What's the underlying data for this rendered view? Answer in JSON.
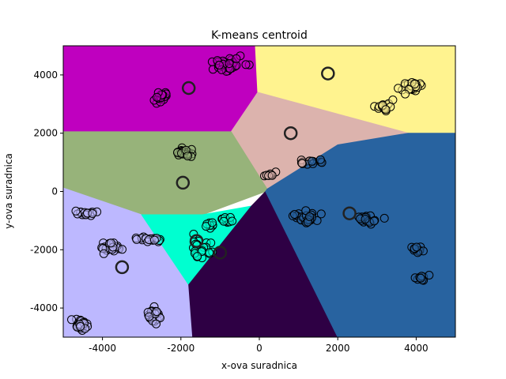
{
  "chart_data": {
    "type": "scatter",
    "title": "K-means centroid",
    "xlabel": "x-ova suradnica",
    "ylabel": "y-ova suradnica",
    "xlim": [
      -5000,
      5000
    ],
    "ylim": [
      -5000,
      5000
    ],
    "xticks": [
      -4000,
      -2000,
      0,
      2000,
      4000
    ],
    "yticks": [
      -4000,
      -2000,
      0,
      2000,
      4000
    ],
    "grid": false,
    "regions": [
      {
        "color": "#bf00bf",
        "polygon": [
          [
            -5000,
            5000
          ],
          [
            -100,
            5000
          ],
          [
            -40,
            3400
          ],
          [
            -720,
            2050
          ],
          [
            -5000,
            2050
          ]
        ]
      },
      {
        "color": "#fff38f",
        "polygon": [
          [
            -100,
            5000
          ],
          [
            5000,
            5000
          ],
          [
            5000,
            2000
          ],
          [
            3800,
            2000
          ],
          [
            -40,
            3400
          ]
        ]
      },
      {
        "color": "#dcb3ad",
        "polygon": [
          [
            -40,
            3400
          ],
          [
            3800,
            2000
          ],
          [
            2000,
            1600
          ],
          [
            200,
            80
          ],
          [
            -720,
            2050
          ]
        ]
      },
      {
        "color": "#97b37a",
        "polygon": [
          [
            -5000,
            2050
          ],
          [
            -720,
            2050
          ],
          [
            200,
            80
          ],
          [
            160,
            0
          ],
          [
            -1450,
            -800
          ],
          [
            -3000,
            -800
          ],
          [
            -5000,
            120
          ]
        ]
      },
      {
        "color": "#bdb8ff",
        "polygon": [
          [
            -5000,
            120
          ],
          [
            -3000,
            -800
          ],
          [
            -1750,
            -3200
          ],
          [
            -1700,
            -5000
          ],
          [
            -5000,
            -5000
          ]
        ]
      },
      {
        "color": "#00ffd0",
        "polygon": [
          [
            -3000,
            -800
          ],
          [
            -1450,
            -800
          ],
          [
            -200,
            -500
          ],
          [
            -1800,
            -3200
          ]
        ]
      },
      {
        "color": "#2e0044",
        "polygon": [
          [
            -1800,
            -3200
          ],
          [
            -200,
            -500
          ],
          [
            160,
            0
          ],
          [
            2000,
            -5000
          ],
          [
            -1700,
            -5000
          ]
        ]
      },
      {
        "color": "#2863a0",
        "polygon": [
          [
            160,
            0
          ],
          [
            200,
            80
          ],
          [
            2000,
            1600
          ],
          [
            3800,
            2000
          ],
          [
            5000,
            2000
          ],
          [
            5000,
            -5000
          ],
          [
            2000,
            -5000
          ]
        ]
      }
    ],
    "clusters": [
      {
        "cx": -780,
        "cy": 4400,
        "sx": 380,
        "sy": 180,
        "n": 40
      },
      {
        "cx": -2500,
        "cy": 3250,
        "sx": 150,
        "sy": 180,
        "n": 20
      },
      {
        "cx": 3850,
        "cy": 3600,
        "sx": 220,
        "sy": 150,
        "n": 24
      },
      {
        "cx": 3200,
        "cy": 2950,
        "sx": 200,
        "sy": 140,
        "n": 16
      },
      {
        "cx": -1900,
        "cy": 1350,
        "sx": 200,
        "sy": 160,
        "n": 22
      },
      {
        "cx": 1300,
        "cy": 1000,
        "sx": 220,
        "sy": 130,
        "n": 16
      },
      {
        "cx": 300,
        "cy": 600,
        "sx": 120,
        "sy": 70,
        "n": 8
      },
      {
        "cx": -4400,
        "cy": -750,
        "sx": 260,
        "sy": 80,
        "n": 16
      },
      {
        "cx": -2800,
        "cy": -1650,
        "sx": 280,
        "sy": 100,
        "n": 18
      },
      {
        "cx": -3800,
        "cy": -1900,
        "sx": 220,
        "sy": 180,
        "n": 24
      },
      {
        "cx": -1300,
        "cy": -1100,
        "sx": 150,
        "sy": 100,
        "n": 8
      },
      {
        "cx": -900,
        "cy": -1000,
        "sx": 200,
        "sy": 100,
        "n": 10
      },
      {
        "cx": -1500,
        "cy": -1750,
        "sx": 250,
        "sy": 250,
        "n": 12
      },
      {
        "cx": -1400,
        "cy": -2200,
        "sx": 250,
        "sy": 150,
        "n": 10
      },
      {
        "cx": 1200,
        "cy": -900,
        "sx": 320,
        "sy": 160,
        "n": 24
      },
      {
        "cx": 2750,
        "cy": -950,
        "sx": 260,
        "sy": 110,
        "n": 20
      },
      {
        "cx": 4000,
        "cy": -2000,
        "sx": 180,
        "sy": 90,
        "n": 12
      },
      {
        "cx": 4200,
        "cy": -2950,
        "sx": 150,
        "sy": 90,
        "n": 10
      },
      {
        "cx": -4550,
        "cy": -4550,
        "sx": 200,
        "sy": 180,
        "n": 28
      },
      {
        "cx": -2650,
        "cy": -4250,
        "sx": 180,
        "sy": 200,
        "n": 28
      }
    ],
    "centroids": [
      {
        "x": -1800,
        "y": 3550
      },
      {
        "x": 1750,
        "y": 4050
      },
      {
        "x": 800,
        "y": 2000
      },
      {
        "x": -1950,
        "y": 300
      },
      {
        "x": 2300,
        "y": -750
      },
      {
        "x": -3500,
        "y": -2600
      },
      {
        "x": -1600,
        "y": -1700
      },
      {
        "x": -1000,
        "y": -2100
      }
    ]
  }
}
